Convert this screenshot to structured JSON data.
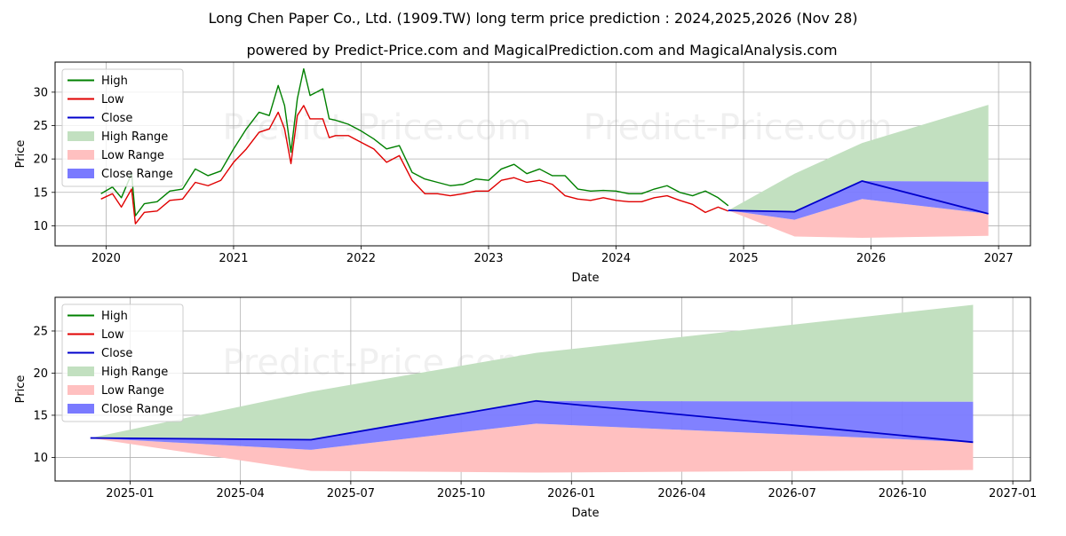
{
  "title": "Long Chen Paper Co., Ltd. (1909.TW) long term price prediction : 2024,2025,2026 (Nov 28)",
  "subtitle": "powered by Predict-Price.com and MagicalPrediction.com and MagicalAnalysis.com",
  "watermark": "Predict-Price.com",
  "colors": {
    "high": "#008000",
    "low": "#e00000",
    "close": "#0000cc",
    "high_range": "#c2e0c0",
    "low_range": "#ffc0c0",
    "close_range": "#7a7aff"
  },
  "chart_data": [
    {
      "type": "line",
      "xlabel": "Date",
      "ylabel": "Price",
      "x_ticks": [
        "2020",
        "2021",
        "2022",
        "2023",
        "2024",
        "2025",
        "2026",
        "2027"
      ],
      "y_ticks": [
        "10",
        "15",
        "20",
        "25",
        "30"
      ],
      "xlim": [
        2019.6,
        2027.25
      ],
      "ylim": [
        7,
        34.5
      ],
      "grid": true,
      "legend_position": "upper-left",
      "legend": [
        "High",
        "Low",
        "Close",
        "High Range",
        "Low Range",
        "Close Range"
      ],
      "series": [
        {
          "name": "High",
          "x": [
            2019.96,
            2020.05,
            2020.12,
            2020.2,
            2020.23,
            2020.3,
            2020.4,
            2020.5,
            2020.6,
            2020.7,
            2020.8,
            2020.9,
            2021.0,
            2021.1,
            2021.2,
            2021.28,
            2021.35,
            2021.4,
            2021.45,
            2021.5,
            2021.55,
            2021.6,
            2021.7,
            2021.75,
            2021.8,
            2021.9,
            2022.0,
            2022.1,
            2022.2,
            2022.3,
            2022.4,
            2022.5,
            2022.6,
            2022.7,
            2022.8,
            2022.9,
            2023.0,
            2023.1,
            2023.2,
            2023.3,
            2023.4,
            2023.5,
            2023.6,
            2023.7,
            2023.8,
            2023.9,
            2024.0,
            2024.1,
            2024.2,
            2024.3,
            2024.4,
            2024.5,
            2024.6,
            2024.7,
            2024.8,
            2024.88
          ],
          "values": [
            14.8,
            15.8,
            14.2,
            17.8,
            11.5,
            13.3,
            13.6,
            15.2,
            15.5,
            18.5,
            17.5,
            18.2,
            21.5,
            24.5,
            27.0,
            26.5,
            31.0,
            28.0,
            21.0,
            29.0,
            33.5,
            29.5,
            30.5,
            26.0,
            25.8,
            25.2,
            24.2,
            23.0,
            21.5,
            22.0,
            18.0,
            17.0,
            16.5,
            16.0,
            16.2,
            17.0,
            16.8,
            18.5,
            19.2,
            17.8,
            18.5,
            17.5,
            17.5,
            15.5,
            15.2,
            15.3,
            15.2,
            14.8,
            14.8,
            15.5,
            16.0,
            15.0,
            14.5,
            15.2,
            14.2,
            13.0
          ]
        },
        {
          "name": "Low",
          "x": [
            2019.96,
            2020.05,
            2020.12,
            2020.2,
            2020.23,
            2020.3,
            2020.4,
            2020.5,
            2020.6,
            2020.7,
            2020.8,
            2020.9,
            2021.0,
            2021.1,
            2021.2,
            2021.28,
            2021.35,
            2021.4,
            2021.45,
            2021.5,
            2021.55,
            2021.6,
            2021.7,
            2021.75,
            2021.8,
            2021.9,
            2022.0,
            2022.1,
            2022.2,
            2022.3,
            2022.4,
            2022.5,
            2022.6,
            2022.7,
            2022.8,
            2022.9,
            2023.0,
            2023.1,
            2023.2,
            2023.3,
            2023.4,
            2023.5,
            2023.6,
            2023.7,
            2023.8,
            2023.9,
            2024.0,
            2024.1,
            2024.2,
            2024.3,
            2024.4,
            2024.5,
            2024.6,
            2024.7,
            2024.8,
            2024.88
          ],
          "values": [
            14.0,
            14.8,
            12.8,
            15.5,
            10.3,
            12.0,
            12.2,
            13.8,
            14.0,
            16.5,
            16.0,
            16.8,
            19.5,
            21.5,
            24.0,
            24.5,
            27.0,
            24.5,
            19.3,
            26.5,
            28.0,
            26.0,
            26.0,
            23.2,
            23.5,
            23.5,
            22.5,
            21.5,
            19.5,
            20.5,
            16.8,
            14.8,
            14.8,
            14.5,
            14.8,
            15.2,
            15.2,
            16.8,
            17.2,
            16.5,
            16.8,
            16.2,
            14.5,
            14.0,
            13.8,
            14.2,
            13.8,
            13.6,
            13.6,
            14.2,
            14.5,
            13.8,
            13.2,
            12.0,
            12.8,
            12.2
          ]
        },
        {
          "name": "Close",
          "x": [
            2024.88,
            2025.4,
            2025.93,
            2026.92
          ],
          "values": [
            12.3,
            12.1,
            16.7,
            11.8
          ]
        },
        {
          "name": "High Range",
          "x": [
            2024.88,
            2025.4,
            2025.93,
            2026.92
          ],
          "upper": [
            12.3,
            17.8,
            22.4,
            28.1
          ],
          "lower": [
            12.3,
            12.1,
            16.7,
            16.6
          ]
        },
        {
          "name": "Low Range",
          "x": [
            2024.88,
            2025.4,
            2025.93,
            2026.92
          ],
          "upper": [
            12.3,
            10.9,
            14.0,
            11.8
          ],
          "lower": [
            12.3,
            8.4,
            8.2,
            8.5
          ]
        },
        {
          "name": "Close Range",
          "x": [
            2024.88,
            2025.4,
            2025.93,
            2026.92
          ],
          "upper": [
            12.3,
            12.1,
            16.7,
            16.6
          ],
          "lower": [
            12.3,
            10.9,
            14.0,
            11.8
          ]
        }
      ]
    },
    {
      "type": "line",
      "xlabel": "Date",
      "ylabel": "Price",
      "x_ticks": [
        "2025-01",
        "2025-04",
        "2025-07",
        "2025-10",
        "2026-01",
        "2026-04",
        "2026-07",
        "2026-10",
        "2027-01"
      ],
      "y_ticks": [
        "10",
        "15",
        "20",
        "25"
      ],
      "xlim": [
        2024.83,
        2027.04
      ],
      "ylim": [
        7.2,
        29.0
      ],
      "grid": true,
      "legend_position": "upper-left",
      "legend": [
        "High",
        "Low",
        "Close",
        "High Range",
        "Low Range",
        "Close Range"
      ],
      "series": [
        {
          "name": "Close",
          "x": [
            2024.91,
            2025.41,
            2025.92,
            2026.91
          ],
          "values": [
            12.3,
            12.1,
            16.7,
            11.8
          ]
        },
        {
          "name": "High Range",
          "x": [
            2024.91,
            2025.41,
            2025.92,
            2026.91
          ],
          "upper": [
            12.3,
            17.8,
            22.4,
            28.1
          ],
          "lower": [
            12.3,
            12.1,
            16.7,
            16.6
          ]
        },
        {
          "name": "Low Range",
          "x": [
            2024.91,
            2025.41,
            2025.92,
            2026.91
          ],
          "upper": [
            12.3,
            10.9,
            14.0,
            11.8
          ],
          "lower": [
            12.3,
            8.4,
            8.2,
            8.5
          ]
        },
        {
          "name": "Close Range",
          "x": [
            2024.91,
            2025.41,
            2025.92,
            2026.91
          ],
          "upper": [
            12.3,
            12.1,
            16.7,
            16.6
          ],
          "lower": [
            12.3,
            10.9,
            14.0,
            11.8
          ]
        }
      ]
    }
  ]
}
